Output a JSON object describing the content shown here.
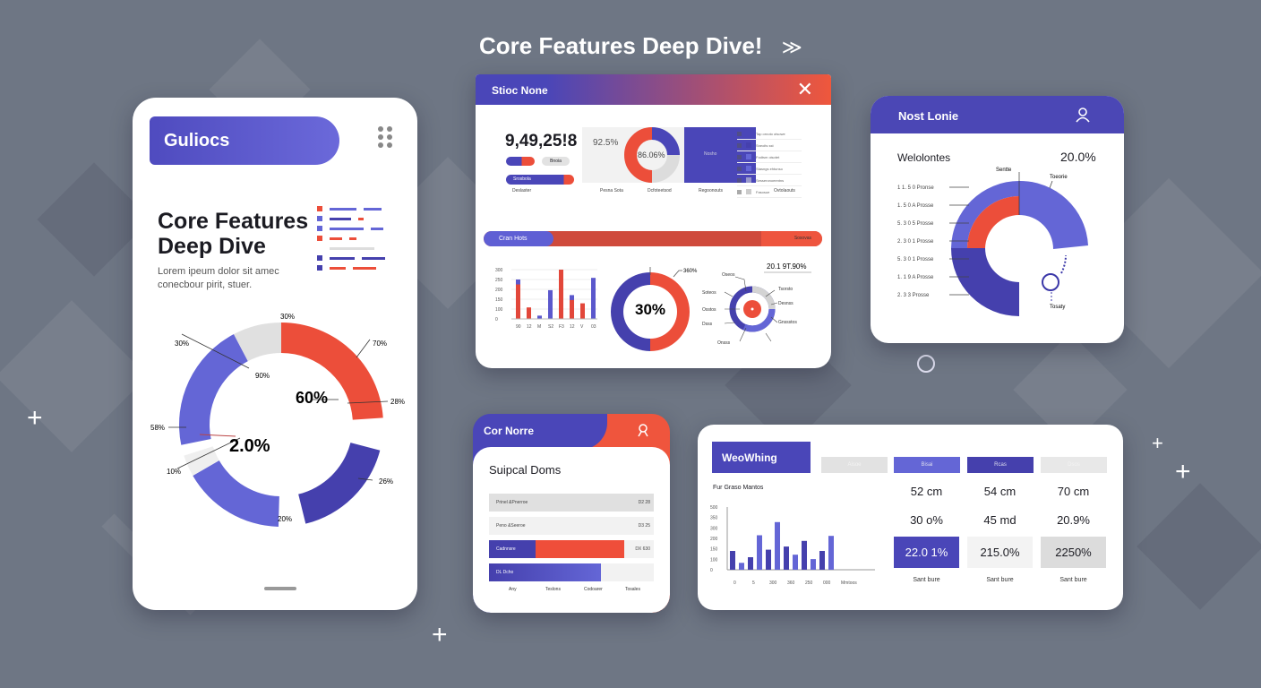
{
  "page_title": "Core Features Deep Dive!",
  "colors": {
    "purple": "#5b58cc",
    "navy": "#4540ad",
    "red": "#ec4e3a",
    "gray": "#dedede",
    "bg": "#6e7684"
  },
  "phone_card": {
    "header": "Guliocs",
    "heading_line1": "Core Features",
    "heading_line2": "Deep Dive",
    "body_line1": "Lorem ipeum dolor sit amec",
    "body_line2": "conecbour pirit, stuer.",
    "center_top": "60%",
    "center_bottom": "2.0%",
    "labels": [
      "30%",
      "30%",
      "90%",
      "70%",
      "28%",
      "58%",
      "10%",
      "26%",
      "20%"
    ],
    "donut": [
      {
        "color": "#ec4e3a",
        "value": 28
      },
      {
        "color": null,
        "value": 6
      },
      {
        "color": "#4540ad",
        "value": 20
      },
      {
        "color": null,
        "value": 5
      },
      {
        "color": "#6466d6",
        "value": 19
      },
      {
        "color": "#efefef",
        "value": 4
      },
      {
        "color": null,
        "value": 2
      },
      {
        "color": "#6466d6",
        "value": 24
      },
      {
        "color": "#e0e0e0",
        "value": 9
      }
    ]
  },
  "stats_card": {
    "title": "Stioc None",
    "big_number": "9,49,25!8",
    "toggle_right": "Bnoia",
    "progress_label": "Srosbola",
    "box_left_value": "92.5%",
    "box_center_value": "86.06%",
    "box_right_label": "Nosho",
    "list_items": [
      "Tap ornoto otsowe",
      "Sneoits sst",
      "Fodtsm oisotet",
      "Stasngs ehtunso",
      "Sesseronoeentns",
      "Fasosue"
    ],
    "footer_labels": [
      "Deslaster",
      "Pesna Sota",
      "Dcfoteetsod",
      "Regoonouts",
      "Ovtolaouts"
    ],
    "bar_title": "Cran Hots",
    "bar_end": "Sosovas",
    "bar_fill": 0.82,
    "bar_chart": {
      "yticks": [
        "300",
        "250",
        "200",
        "150",
        "100",
        "0"
      ],
      "xticks": [
        "90",
        "12",
        "M",
        "S2",
        "F3",
        "12",
        "V",
        "03"
      ],
      "series": [
        {
          "name": "red",
          "values": [
            210,
            70,
            0,
            0,
            300,
            115,
            95,
            0
          ]
        },
        {
          "name": "blue",
          "values": [
            240,
            0,
            20,
            175,
            0,
            145,
            0,
            250
          ]
        }
      ]
    },
    "donut_center": "30%",
    "donut_label": "360%",
    "donut": [
      {
        "color": "#ec4e3a",
        "value": 50
      },
      {
        "color": "#4540ad",
        "value": 50
      }
    ],
    "ring_title": "20.1 9T.90%",
    "ring_labels": [
      "Oseos",
      "Tsorsto",
      "Soteos",
      "Desnss",
      "Osstos",
      "Gnssstos",
      "Dsss",
      "Onsss"
    ]
  },
  "legend_card": {
    "title": "Nost Lonie",
    "heading": "Welolontes",
    "value": "20.0%",
    "top_labels": [
      "Sentte",
      "Toeorie"
    ],
    "bottom_label": "Tosaty",
    "labels": [
      "1 1. 5 0 Pronse",
      "1. 5 0 A Prosse",
      "5. 3 0 5 Prosse",
      "2. 3 0 1 Prosse",
      "5. 3 0 1 Prosse",
      "1. 1 9 A Prosse",
      "2. 3 3 Prosse"
    ]
  },
  "side_card": {
    "title": "Cor Norre",
    "heading": "Suipcal Doms",
    "rows": [
      {
        "label": "Prinel &Pnerroe",
        "value": "D2 28"
      },
      {
        "label": "Peno &Seeroe",
        "value": "D3 25"
      },
      {
        "label": "Cadnnsre",
        "value": "DX 630",
        "fill": 0.82
      },
      {
        "label": "DL Dcho",
        "value": "",
        "fill": 0.68
      }
    ],
    "axis": [
      "Any",
      "Teslons",
      "Codoarer",
      "Tosales"
    ]
  },
  "metrics_card": {
    "title": "WeoWhing",
    "col_headers": [
      "Aisoe",
      "Bisai",
      "Rcas",
      "Dsos"
    ],
    "chart_title": "Fur Graso Mantos",
    "chart": {
      "yticks": [
        "500",
        "350",
        "300",
        "200",
        "150",
        "100",
        "0"
      ],
      "xticks": [
        "0",
        "5",
        "300",
        "360",
        "250",
        "000",
        "Mmtoos"
      ],
      "values": [
        150,
        55,
        100,
        275,
        160,
        380,
        185,
        120,
        230,
        85,
        150,
        270
      ]
    },
    "rows": [
      [
        "52 cm",
        "54 cm",
        "70 cm"
      ],
      [
        "30 o%",
        "45 md",
        "20.9%"
      ],
      [
        "22.0 1%",
        "215.0%",
        "2250%"
      ]
    ],
    "footer": [
      "Sant bure",
      "Sant bure",
      "Sant bure"
    ]
  }
}
